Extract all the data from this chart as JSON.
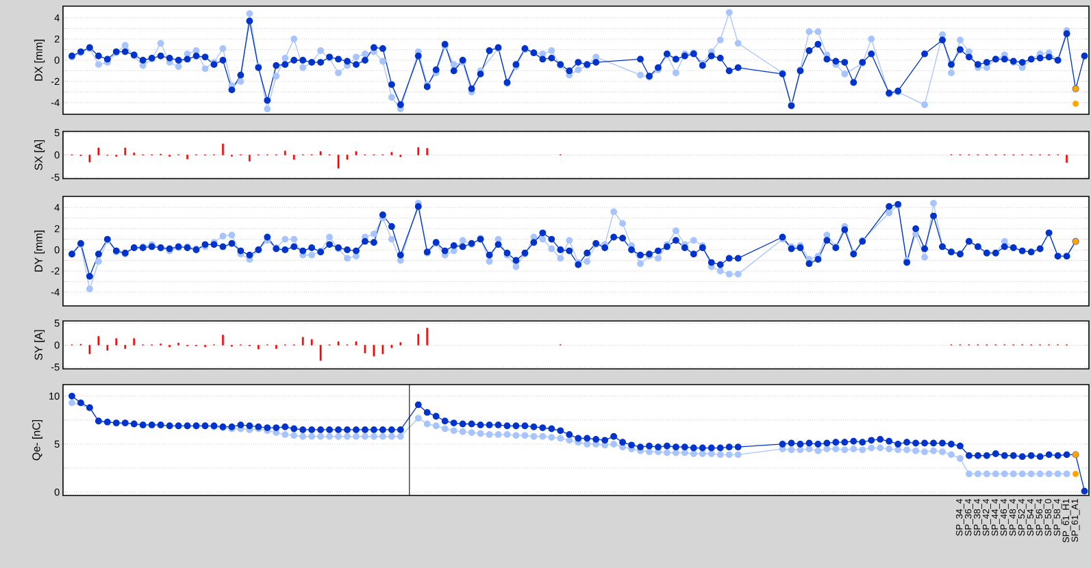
{
  "chart_data": [
    {
      "type": "line",
      "ylabel": "DX [mm]",
      "tick_labels": "y",
      "grid": "y",
      "marker": "circle",
      "categories": [
        null,
        null,
        null,
        null,
        null,
        null,
        null,
        null,
        null,
        null,
        null,
        null,
        null,
        null,
        null,
        null,
        null,
        null,
        null,
        null,
        null,
        null,
        null,
        null,
        null,
        null,
        null,
        null,
        null,
        null,
        null,
        null,
        null,
        null,
        null,
        null,
        null,
        null,
        null,
        null,
        null,
        null,
        null,
        null,
        null,
        null,
        null,
        null,
        null,
        null,
        null,
        null,
        null,
        null,
        null,
        null,
        null,
        null,
        null,
        null,
        null,
        null,
        null,
        null,
        null,
        null,
        null,
        null,
        null,
        null,
        null,
        null,
        null,
        null,
        null,
        null,
        null,
        null,
        null,
        null,
        null,
        null,
        null,
        null,
        null,
        null,
        null,
        null,
        null,
        null,
        null,
        null,
        null,
        null,
        null,
        null,
        null,
        null,
        null,
        null,
        null,
        null,
        null,
        null,
        null,
        null,
        null,
        null,
        null,
        null,
        null,
        null,
        null,
        null,
        null
      ],
      "ylim": [
        -5.1,
        5.1
      ],
      "yticks": [
        -4,
        {
          "value": -3,
          "label": null
        },
        -2,
        {
          "value": -1,
          "label": null
        },
        0,
        {
          "value": 1,
          "label": null
        },
        2,
        {
          "value": 3,
          "label": null
        },
        4
      ],
      "series": [
        {
          "color": "#a8c4ff",
          "values": [
            0.3,
            0.7,
            1.1,
            -0.4,
            -0.2,
            0.7,
            1.4,
            0.4,
            -0.5,
            0.1,
            1.6,
            -0.2,
            -0.6,
            0.6,
            0.9,
            -0.8,
            -0.2,
            1.1,
            -2.4,
            -2.0,
            4.4,
            -0.6,
            -4.6,
            -1.5,
            0.2,
            2.0,
            -0.7,
            -0.2,
            0.9,
            0.2,
            -1.2,
            -0.5,
            0.3,
            0.6,
            0.8,
            -0.1,
            -3.5,
            -4.6,
            null,
            0.8,
            -2.3,
            -1.2,
            1.3,
            -0.4,
            -0.2,
            -3.0,
            -1.0,
            null,
            1.1,
            -2.2,
            -0.6,
            1.0,
            0.7,
            0.6,
            0.9,
            -0.5,
            -1.4,
            -0.9,
            -0.5,
            0.3,
            null,
            null,
            null,
            null,
            -1.4,
            -1.6,
            -0.9,
            0.5,
            -1.2,
            0.6,
            0.7,
            -0.3,
            0.8,
            1.9,
            4.5,
            1.6,
            null,
            null,
            null,
            null,
            -1.2,
            -4.2,
            -0.9,
            2.7,
            2.7,
            0.5,
            -0.4,
            -1.3,
            null,
            -0.3,
            2.0,
            null,
            -3.2,
            -3.0,
            null,
            null,
            -4.2,
            null,
            2.4,
            -1.2,
            1.9,
            0.8,
            -0.7,
            -0.7,
            0.1,
            0.5,
            -0.2,
            -0.7,
            0.1,
            0.6,
            0.7,
            0,
            2.8,
            null,
            null
          ]
        },
        {
          "color": "#0033cc",
          "values": [
            0.4,
            0.8,
            1.2,
            0.4,
            0.1,
            0.8,
            0.8,
            0.5,
            0,
            0.2,
            0.4,
            0.2,
            0,
            0.1,
            0.4,
            0.3,
            -0.4,
            0,
            -2.8,
            -1.4,
            3.7,
            -0.7,
            -3.8,
            -0.5,
            -0.4,
            0,
            0,
            -0.2,
            -0.2,
            0.3,
            0.1,
            -0.1,
            -0.4,
            0,
            1.2,
            1.1,
            -2.3,
            -4.2,
            null,
            0.4,
            -2.5,
            -0.9,
            1.5,
            -1.0,
            0,
            -2.7,
            -1.3,
            0.9,
            1.2,
            -2.1,
            -0.4,
            1.1,
            0.7,
            0.1,
            0.2,
            -0.4,
            -1.0,
            -0.2,
            -0.4,
            -0.2,
            null,
            null,
            null,
            null,
            0.1,
            -1.5,
            -0.7,
            0.6,
            0.1,
            0.4,
            0.6,
            -0.5,
            0.4,
            0.2,
            -1.0,
            -0.7,
            null,
            null,
            null,
            null,
            -1.3,
            -4.3,
            -1.0,
            0.9,
            1.5,
            0.1,
            -0.1,
            -0.2,
            -2.1,
            -0.2,
            0.6,
            null,
            -3.1,
            -2.9,
            null,
            null,
            0.6,
            null,
            1.9,
            -0.4,
            1.0,
            0.3,
            -0.4,
            -0.2,
            0.1,
            0.1,
            -0.1,
            -0.2,
            0.1,
            0.2,
            0.3,
            0,
            2.5,
            -2.7,
            0.4
          ]
        },
        {
          "type": "scatter",
          "color": "#ffa500",
          "values": [
            null,
            null,
            null,
            null,
            null,
            null,
            null,
            null,
            null,
            null,
            null,
            null,
            null,
            null,
            null,
            null,
            null,
            null,
            null,
            null,
            null,
            null,
            null,
            null,
            null,
            null,
            null,
            null,
            null,
            null,
            null,
            null,
            null,
            null,
            null,
            null,
            null,
            null,
            null,
            null,
            null,
            null,
            null,
            null,
            null,
            null,
            null,
            null,
            null,
            null,
            null,
            null,
            null,
            null,
            null,
            null,
            null,
            null,
            null,
            null,
            null,
            null,
            null,
            null,
            null,
            null,
            null,
            null,
            null,
            null,
            null,
            null,
            null,
            null,
            null,
            null,
            null,
            null,
            null,
            null,
            null,
            null,
            null,
            null,
            null,
            null,
            null,
            null,
            null,
            null,
            null,
            null,
            null,
            null,
            null,
            null,
            null,
            null,
            null,
            null,
            null,
            null,
            null,
            null,
            null,
            null,
            null,
            null,
            null,
            null,
            null,
            null,
            null,
            -2.7,
            null
          ]
        },
        {
          "type": "scatter",
          "color": "#ffa500",
          "values": [
            null,
            null,
            null,
            null,
            null,
            null,
            null,
            null,
            null,
            null,
            null,
            null,
            null,
            null,
            null,
            null,
            null,
            null,
            null,
            null,
            null,
            null,
            null,
            null,
            null,
            null,
            null,
            null,
            null,
            null,
            null,
            null,
            null,
            null,
            null,
            null,
            null,
            null,
            null,
            null,
            null,
            null,
            null,
            null,
            null,
            null,
            null,
            null,
            null,
            null,
            null,
            null,
            null,
            null,
            null,
            null,
            null,
            null,
            null,
            null,
            null,
            null,
            null,
            null,
            null,
            null,
            null,
            null,
            null,
            null,
            null,
            null,
            null,
            null,
            null,
            null,
            null,
            null,
            null,
            null,
            null,
            null,
            null,
            null,
            null,
            null,
            null,
            null,
            null,
            null,
            null,
            null,
            null,
            null,
            null,
            null,
            null,
            null,
            null,
            null,
            null,
            null,
            null,
            null,
            null,
            null,
            null,
            null,
            null,
            null,
            null,
            null,
            null,
            -4.1,
            null
          ]
        }
      ]
    },
    {
      "type": "bar",
      "ylabel": "SX [A]",
      "tick_labels": "y",
      "grid": "y",
      "categories": [
        null,
        null,
        null,
        null,
        null,
        null,
        null,
        null,
        null,
        null,
        null,
        null,
        null,
        null,
        null,
        null,
        null,
        null,
        null,
        null,
        null,
        null,
        null,
        null,
        null,
        null,
        null,
        null,
        null,
        null,
        null,
        null,
        null,
        null,
        null,
        null,
        null,
        null,
        null,
        null,
        null,
        null,
        null,
        null,
        null,
        null,
        null,
        null,
        null,
        null,
        null,
        null,
        null,
        null,
        null,
        null,
        null,
        null,
        null,
        null,
        null,
        null,
        null,
        null,
        null,
        null,
        null,
        null,
        null,
        null,
        null,
        null,
        null,
        null,
        null,
        null,
        null,
        null,
        null,
        null,
        null,
        null,
        null,
        null,
        null,
        null,
        null,
        null,
        null,
        null,
        null,
        null,
        null,
        null,
        null,
        null,
        null,
        null,
        null,
        null,
        null,
        null,
        null,
        null,
        null,
        null,
        null,
        null,
        null,
        null,
        null,
        null,
        null,
        null,
        null
      ],
      "ylim": [
        -5.3,
        5.3
      ],
      "yticks": [
        -5,
        0,
        5
      ],
      "series": [
        {
          "color": "#ff0000",
          "values": [
            0.1,
            -0.2,
            -1.6,
            1.6,
            -0.1,
            -0.3,
            1.6,
            0.5,
            0.1,
            0.1,
            0.2,
            -0.3,
            0.1,
            -0.9,
            0.1,
            0.1,
            0.1,
            2.5,
            -0.3,
            0.1,
            -1.4,
            0.1,
            0.1,
            0.1,
            0.9,
            -1.0,
            0.1,
            0.1,
            0.8,
            0.1,
            -3.0,
            -1.0,
            0.8,
            0.1,
            0.1,
            0.1,
            0.6,
            -0.4,
            null,
            1.7,
            1.5,
            null,
            null,
            null,
            null,
            null,
            null,
            null,
            null,
            null,
            null,
            null,
            null,
            null,
            null,
            0.1,
            null,
            null,
            null,
            null,
            null,
            null,
            null,
            null,
            null,
            null,
            null,
            null,
            null,
            null,
            null,
            null,
            null,
            null,
            null,
            null,
            null,
            null,
            null,
            null,
            null,
            null,
            null,
            null,
            null,
            null,
            null,
            null,
            null,
            null,
            null,
            null,
            null,
            null,
            null,
            null,
            null,
            null,
            null,
            0.1,
            0.1,
            0.1,
            0.1,
            0.1,
            0.1,
            0.1,
            0.1,
            0.1,
            0.1,
            0.1,
            0.1,
            0.1,
            -1.7,
            null,
            null
          ]
        }
      ]
    },
    {
      "type": "line",
      "ylabel": "DY [mm]",
      "tick_labels": "y",
      "grid": "y",
      "marker": "circle",
      "categories": [
        null,
        null,
        null,
        null,
        null,
        null,
        null,
        null,
        null,
        null,
        null,
        null,
        null,
        null,
        null,
        null,
        null,
        null,
        null,
        null,
        null,
        null,
        null,
        null,
        null,
        null,
        null,
        null,
        null,
        null,
        null,
        null,
        null,
        null,
        null,
        null,
        null,
        null,
        null,
        null,
        null,
        null,
        null,
        null,
        null,
        null,
        null,
        null,
        null,
        null,
        null,
        null,
        null,
        null,
        null,
        null,
        null,
        null,
        null,
        null,
        null,
        null,
        null,
        null,
        null,
        null,
        null,
        null,
        null,
        null,
        null,
        null,
        null,
        null,
        null,
        null,
        null,
        null,
        null,
        null,
        null,
        null,
        null,
        null,
        null,
        null,
        null,
        null,
        null,
        null,
        null,
        null,
        null,
        null,
        null,
        null,
        null,
        null,
        null,
        null,
        null,
        null,
        null,
        null,
        null,
        null,
        null,
        null,
        null,
        null,
        null,
        null,
        null,
        null,
        null
      ],
      "ylim": [
        -5.3,
        5.05
      ],
      "yticks": [
        -4,
        {
          "value": -3,
          "label": null
        },
        -2,
        {
          "value": -1,
          "label": null
        },
        0,
        {
          "value": 1,
          "label": null
        },
        2,
        {
          "value": 3,
          "label": null
        },
        4
      ],
      "series": [
        {
          "color": "#a8c4ff",
          "values": [
            -0.4,
            0.5,
            -3.7,
            -1.1,
            0.9,
            -0.2,
            -0.4,
            0.2,
            0.3,
            0.5,
            0.2,
            -0.1,
            0.2,
            0.3,
            0.1,
            0.3,
            0.7,
            1.3,
            1.4,
            -0.4,
            -0.9,
            0,
            0.9,
            0.2,
            1.0,
            1.0,
            -0.5,
            -0.5,
            -0.1,
            1.2,
            0.1,
            -0.8,
            -0.6,
            1.2,
            1.5,
            3.0,
            1.0,
            -1.0,
            null,
            4.4,
            -0.3,
            0.6,
            -0.5,
            -0.1,
            0.9,
            0.5,
            1.1,
            -1.1,
            1.0,
            -0.5,
            -1.6,
            -0.4,
            1.2,
            1.0,
            0.1,
            -0.8,
            0.9,
            -1.2,
            -1.1,
            0.5,
            0.5,
            3.6,
            2.5,
            0.4,
            -1.3,
            -0.6,
            -0.8,
            0.5,
            1.8,
            0.5,
            0.9,
            0.4,
            -1.6,
            -2.0,
            -2.3,
            -2.3,
            null,
            null,
            null,
            null,
            1.0,
            0.3,
            0.4,
            -0.9,
            -0.6,
            1.4,
            0.3,
            2.2,
            -0.3,
            0.9,
            null,
            null,
            3.5,
            4.2,
            -1.0,
            1.5,
            -0.7,
            4.4,
            0.3,
            -0.2,
            -0.4,
            0.8,
            0.3,
            -0.3,
            -0.3,
            0.8,
            0.2,
            -0.1,
            -0.2,
            0.1,
            1.6,
            -0.6,
            -0.6,
            0.8,
            null
          ]
        },
        {
          "color": "#0033cc",
          "values": [
            -0.4,
            0.6,
            -2.5,
            -0.4,
            1.0,
            -0.1,
            -0.3,
            0.2,
            0.2,
            0.3,
            0.2,
            0.1,
            0.3,
            0.2,
            0,
            0.5,
            0.5,
            0.3,
            0.6,
            -0.1,
            -0.5,
            0,
            1.2,
            0.1,
            0,
            0.3,
            -0.1,
            0.2,
            -0.2,
            0.5,
            0.2,
            0,
            -0.1,
            0.8,
            0.7,
            3.3,
            2.2,
            -0.5,
            null,
            4.1,
            -0.2,
            0.7,
            -0.1,
            0.4,
            0.3,
            0.6,
            1.0,
            -0.5,
            0.5,
            -0.3,
            -1.0,
            -0.3,
            0.7,
            1.6,
            1.0,
            0,
            -0.1,
            -1.4,
            -0.3,
            0.6,
            0.2,
            1.2,
            1.1,
            0,
            -0.5,
            -0.4,
            -0.1,
            0.3,
            0.9,
            0.2,
            -0.4,
            0.2,
            -1.2,
            -1.4,
            -0.8,
            -0.8,
            null,
            null,
            null,
            null,
            1.2,
            0.1,
            0.2,
            -1.3,
            -0.9,
            0.9,
            0.2,
            1.9,
            -0.4,
            0.8,
            null,
            null,
            4.1,
            4.3,
            -1.2,
            2.0,
            0.1,
            3.2,
            0.3,
            -0.2,
            -0.4,
            0.8,
            0.3,
            -0.3,
            -0.3,
            0.3,
            0.2,
            -0.1,
            -0.2,
            0.1,
            1.6,
            -0.6,
            -0.6,
            0.8,
            null
          ]
        },
        {
          "type": "scatter",
          "color": "#ffa500",
          "values": [
            null,
            null,
            null,
            null,
            null,
            null,
            null,
            null,
            null,
            null,
            null,
            null,
            null,
            null,
            null,
            null,
            null,
            null,
            null,
            null,
            null,
            null,
            null,
            null,
            null,
            null,
            null,
            null,
            null,
            null,
            null,
            null,
            null,
            null,
            null,
            null,
            null,
            null,
            null,
            null,
            null,
            null,
            null,
            null,
            null,
            null,
            null,
            null,
            null,
            null,
            null,
            null,
            null,
            null,
            null,
            null,
            null,
            null,
            null,
            null,
            null,
            null,
            null,
            null,
            null,
            null,
            null,
            null,
            null,
            null,
            null,
            null,
            null,
            null,
            null,
            null,
            null,
            null,
            null,
            null,
            null,
            null,
            null,
            null,
            null,
            null,
            null,
            null,
            null,
            null,
            null,
            null,
            null,
            null,
            null,
            null,
            null,
            null,
            null,
            null,
            null,
            null,
            null,
            null,
            null,
            null,
            null,
            null,
            null,
            null,
            null,
            null,
            null,
            0.8,
            null
          ]
        }
      ]
    },
    {
      "type": "bar",
      "ylabel": "SY [A]",
      "tick_labels": "y",
      "grid": "y",
      "categories": [
        null,
        null,
        null,
        null,
        null,
        null,
        null,
        null,
        null,
        null,
        null,
        null,
        null,
        null,
        null,
        null,
        null,
        null,
        null,
        null,
        null,
        null,
        null,
        null,
        null,
        null,
        null,
        null,
        null,
        null,
        null,
        null,
        null,
        null,
        null,
        null,
        null,
        null,
        null,
        null,
        null,
        null,
        null,
        null,
        null,
        null,
        null,
        null,
        null,
        null,
        null,
        null,
        null,
        null,
        null,
        null,
        null,
        null,
        null,
        null,
        null,
        null,
        null,
        null,
        null,
        null,
        null,
        null,
        null,
        null,
        null,
        null,
        null,
        null,
        null,
        null,
        null,
        null,
        null,
        null,
        null,
        null,
        null,
        null,
        null,
        null,
        null,
        null,
        null,
        null,
        null,
        null,
        null,
        null,
        null,
        null,
        null,
        null,
        null,
        null,
        null,
        null,
        null,
        null,
        null,
        null,
        null,
        null,
        null,
        null,
        null,
        null,
        null,
        null,
        null
      ],
      "ylim": [
        -5.4,
        5.5
      ],
      "yticks": [
        -5,
        0,
        5
      ],
      "series": [
        {
          "color": "#ff0000",
          "values": [
            0.1,
            0.2,
            -2,
            2,
            -1.2,
            1.5,
            -0.8,
            1.5,
            0.1,
            0.1,
            0.3,
            -0.4,
            0.5,
            -0.2,
            -0.2,
            -0.4,
            0.1,
            2.3,
            -0.3,
            0.1,
            -0.2,
            -0.9,
            0.1,
            -0.8,
            0.1,
            0.1,
            1.8,
            1.3,
            -3.5,
            0.1,
            0.8,
            0.1,
            0.8,
            -1.8,
            -2.5,
            -2.0,
            -0.6,
            0.6,
            null,
            2.5,
            3.9,
            null,
            null,
            null,
            null,
            null,
            null,
            null,
            null,
            null,
            null,
            null,
            null,
            null,
            null,
            0.1,
            null,
            null,
            null,
            null,
            null,
            null,
            null,
            null,
            null,
            null,
            null,
            null,
            null,
            null,
            null,
            null,
            null,
            null,
            null,
            null,
            null,
            null,
            null,
            null,
            null,
            null,
            null,
            null,
            null,
            null,
            null,
            null,
            null,
            null,
            null,
            null,
            null,
            null,
            null,
            null,
            null,
            null,
            null,
            0.1,
            0.1,
            0.1,
            0.1,
            0.1,
            0.1,
            0.1,
            0.1,
            0.1,
            0.1,
            0.1,
            0.1,
            0.1,
            0.1,
            null,
            null
          ]
        }
      ]
    },
    {
      "type": "line",
      "ylabel": "Qe- [nC]",
      "grid": "y",
      "marker": "circle",
      "categories": [
        null,
        null,
        null,
        null,
        null,
        null,
        null,
        null,
        null,
        null,
        null,
        null,
        null,
        null,
        null,
        null,
        null,
        null,
        null,
        null,
        null,
        null,
        null,
        null,
        null,
        null,
        null,
        null,
        null,
        null,
        null,
        null,
        null,
        null,
        null,
        null,
        null,
        null,
        null,
        null,
        null,
        null,
        null,
        null,
        null,
        null,
        null,
        null,
        null,
        null,
        null,
        null,
        null,
        null,
        null,
        null,
        null,
        null,
        null,
        null,
        null,
        null,
        null,
        null,
        null,
        null,
        null,
        null,
        null,
        null,
        null,
        null,
        null,
        null,
        null,
        null,
        null,
        null,
        null,
        null,
        null,
        null,
        null,
        null,
        null,
        null,
        null,
        null,
        null,
        null,
        null,
        null,
        null,
        null,
        null,
        null,
        null,
        null,
        null,
        null,
        "SP_34_4",
        "SP_36_4",
        "SP_38_4",
        "SP_42_4",
        "SP_44_4",
        "SP_46_4",
        "SP_48_4",
        "SP_52_4",
        "SP_54_4",
        "SP_56_4",
        "SP_58_0",
        "SP_58_4",
        "SP_61_H1",
        "SP_61_A1",
        null
      ],
      "ylim": [
        -0.35,
        11.2
      ],
      "yticks": [
        0,
        {
          "value": 2.5,
          "label": null
        },
        5,
        {
          "value": 7.5,
          "label": null
        },
        10
      ],
      "series": [
        {
          "color": "#a8c4ff",
          "values": [
            9.3,
            null,
            8.8,
            7.4,
            7.3,
            7.2,
            7.2,
            7.1,
            7.0,
            7.0,
            7.0,
            6.9,
            6.9,
            6.9,
            6.9,
            6.9,
            6.8,
            6.7,
            6.6,
            6.6,
            6.5,
            6.6,
            6.4,
            6.2,
            6.0,
            5.9,
            5.8,
            5.8,
            5.8,
            5.8,
            5.8,
            5.8,
            5.8,
            5.8,
            5.8,
            5.8,
            5.8,
            5.8,
            null,
            7.7,
            7.1,
            6.9,
            6.6,
            6.4,
            6.3,
            6.2,
            6.1,
            6.0,
            6.0,
            6.0,
            5.9,
            5.9,
            5.8,
            5.8,
            5.7,
            5.6,
            5.4,
            5.2,
            5.0,
            5.0,
            4.9,
            5.0,
            4.7,
            4.5,
            4.3,
            4.2,
            4.2,
            4.1,
            4.1,
            4.1,
            4.0,
            4.0,
            4.0,
            3.9,
            3.9,
            3.9,
            null,
            null,
            null,
            null,
            4.5,
            4.4,
            4.4,
            4.5,
            4.3,
            4.5,
            4.5,
            4.4,
            4.5,
            4.4,
            4.6,
            4.6,
            4.5,
            4.4,
            4.4,
            4.3,
            4.2,
            4.3,
            4.2,
            3.9,
            3.5,
            1.9,
            1.9,
            1.9,
            1.9,
            1.9,
            1.9,
            1.9,
            1.9,
            1.9,
            1.9,
            1.9,
            1.9,
            null,
            null
          ]
        },
        {
          "color": "#0033cc",
          "values": [
            10.0,
            9.3,
            8.8,
            7.4,
            7.3,
            7.2,
            7.2,
            7.1,
            7.0,
            7.0,
            7.0,
            6.9,
            6.9,
            6.9,
            6.9,
            6.9,
            6.9,
            6.8,
            6.8,
            7.0,
            6.9,
            6.8,
            6.7,
            6.7,
            6.8,
            6.6,
            6.5,
            6.5,
            6.5,
            6.5,
            6.5,
            6.5,
            6.5,
            6.5,
            6.5,
            6.5,
            6.5,
            6.5,
            null,
            9.1,
            8.3,
            7.9,
            7.4,
            7.2,
            7.1,
            7.1,
            7.0,
            7.0,
            7.0,
            6.9,
            6.9,
            6.9,
            6.8,
            6.7,
            6.6,
            6.4,
            6.0,
            5.6,
            5.6,
            5.5,
            5.4,
            5.8,
            5.2,
            4.9,
            4.7,
            4.8,
            4.7,
            4.8,
            4.7,
            4.7,
            4.6,
            4.6,
            4.6,
            4.6,
            4.7,
            4.7,
            null,
            null,
            null,
            null,
            5.0,
            5.1,
            5.0,
            5.1,
            5.0,
            5.1,
            5.2,
            5.2,
            5.3,
            5.2,
            5.4,
            5.5,
            5.3,
            5.0,
            5.2,
            5.1,
            5.1,
            5.1,
            5.1,
            5.0,
            4.8,
            3.8,
            3.8,
            3.8,
            4.0,
            3.8,
            3.8,
            3.7,
            3.8,
            3.7,
            3.9,
            3.8,
            3.9,
            3.9,
            0.1
          ]
        },
        {
          "type": "scatter",
          "color": "#ffa500",
          "values": [
            null,
            null,
            null,
            null,
            null,
            null,
            null,
            null,
            null,
            null,
            null,
            null,
            null,
            null,
            null,
            null,
            null,
            null,
            null,
            null,
            null,
            null,
            null,
            null,
            null,
            null,
            null,
            null,
            null,
            null,
            null,
            null,
            null,
            null,
            null,
            null,
            null,
            null,
            null,
            null,
            null,
            null,
            null,
            null,
            null,
            null,
            null,
            null,
            null,
            null,
            null,
            null,
            null,
            null,
            null,
            null,
            null,
            null,
            null,
            null,
            null,
            null,
            null,
            null,
            null,
            null,
            null,
            null,
            null,
            null,
            null,
            null,
            null,
            null,
            null,
            null,
            null,
            null,
            null,
            null,
            null,
            null,
            null,
            null,
            null,
            null,
            null,
            null,
            null,
            null,
            null,
            null,
            null,
            null,
            null,
            null,
            null,
            null,
            null,
            null,
            null,
            null,
            null,
            null,
            null,
            null,
            null,
            null,
            null,
            null,
            null,
            null,
            null,
            3.9,
            null
          ]
        },
        {
          "type": "scatter",
          "color": "#ffa500",
          "values": [
            null,
            null,
            null,
            null,
            null,
            null,
            null,
            null,
            null,
            null,
            null,
            null,
            null,
            null,
            null,
            null,
            null,
            null,
            null,
            null,
            null,
            null,
            null,
            null,
            null,
            null,
            null,
            null,
            null,
            null,
            null,
            null,
            null,
            null,
            null,
            null,
            null,
            null,
            null,
            null,
            null,
            null,
            null,
            null,
            null,
            null,
            null,
            null,
            null,
            null,
            null,
            null,
            null,
            null,
            null,
            null,
            null,
            null,
            null,
            null,
            null,
            null,
            null,
            null,
            null,
            null,
            null,
            null,
            null,
            null,
            null,
            null,
            null,
            null,
            null,
            null,
            null,
            null,
            null,
            null,
            null,
            null,
            null,
            null,
            null,
            null,
            null,
            null,
            null,
            null,
            null,
            null,
            null,
            null,
            null,
            null,
            null,
            null,
            null,
            null,
            null,
            null,
            null,
            null,
            null,
            null,
            null,
            null,
            null,
            null,
            null,
            null,
            null,
            1.9,
            null
          ]
        }
      ]
    }
  ]
}
